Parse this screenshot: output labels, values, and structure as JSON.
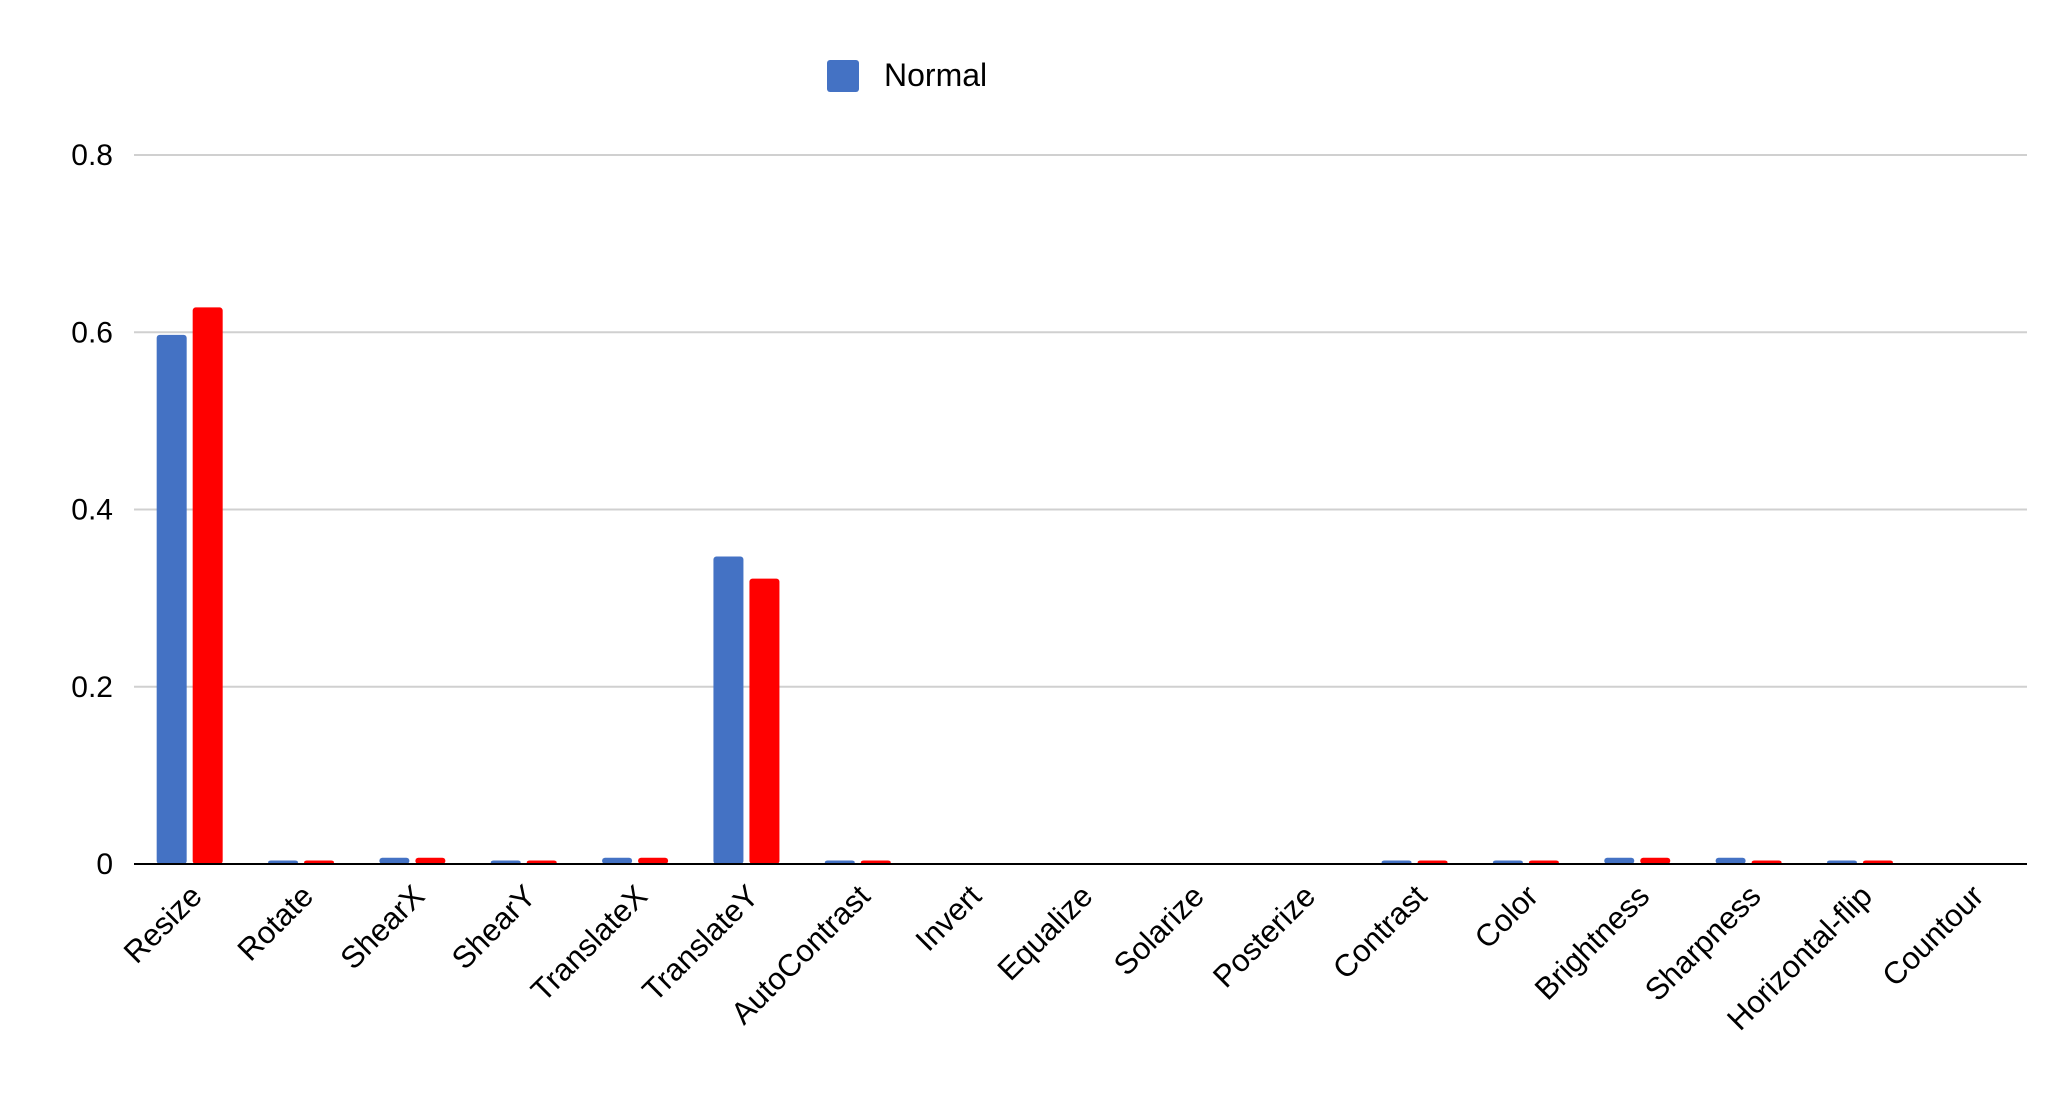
{
  "chart_data": {
    "type": "bar",
    "categories": [
      "Resize",
      "Rotate",
      "ShearX",
      "ShearY",
      "TranslateX",
      "TranslateY",
      "AutoContrast",
      "Invert",
      "Equalize",
      "Solarize",
      "Posterize",
      "Contrast",
      "Color",
      "Brightness",
      "Sharpness",
      "Horizontal-flip",
      "Countour"
    ],
    "series": [
      {
        "name": "Normal",
        "color": "#4472C4",
        "values": [
          0.597,
          0.004,
          0.007,
          0.004,
          0.007,
          0.347,
          0.004,
          0,
          0,
          0,
          0,
          0.004,
          0.004,
          0.007,
          0.007,
          0.004,
          0
        ]
      },
      {
        "color": "#FF0000",
        "values": [
          0.628,
          0.004,
          0.007,
          0.004,
          0.007,
          0.322,
          0.004,
          0,
          0,
          0,
          0,
          0.004,
          0.004,
          0.007,
          0.004,
          0.004,
          0
        ]
      }
    ],
    "ylim": [
      0,
      0.8
    ],
    "yticks": [
      0,
      0.2,
      0.4,
      0.6,
      0.8
    ],
    "ytick_labels": [
      "0",
      "0.2",
      "0.4",
      "0.6",
      "0.8"
    ],
    "grid": true,
    "legend_position": "top-center",
    "title": "",
    "xlabel": "",
    "ylabel": ""
  }
}
